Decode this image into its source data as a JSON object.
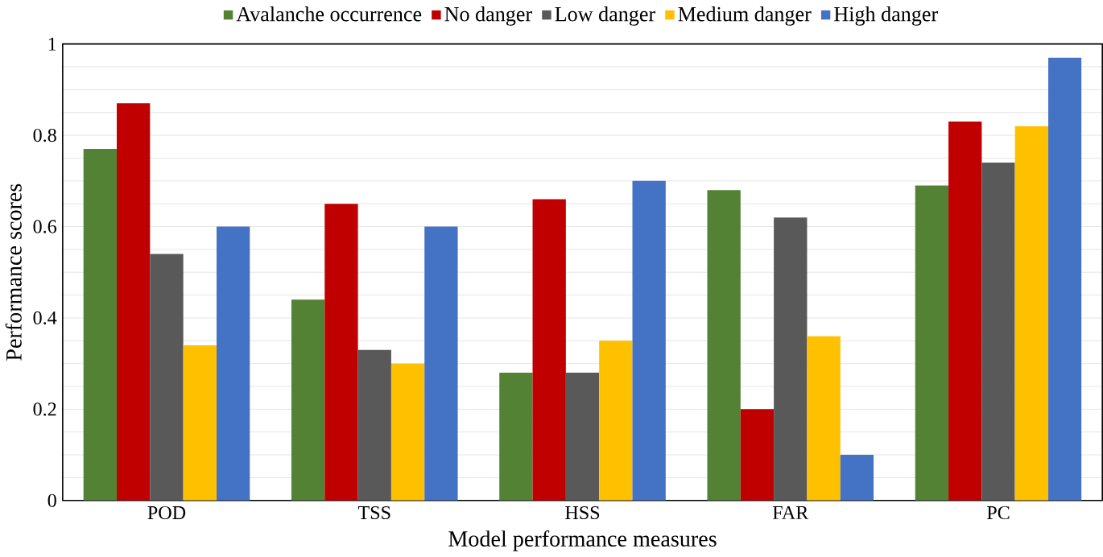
{
  "chart_data": {
    "type": "bar",
    "xlabel": "Model performance measures",
    "ylabel": "Performance scores",
    "categories": [
      "POD",
      "TSS",
      "HSS",
      "FAR",
      "PC"
    ],
    "series": [
      {
        "name": "Avalanche occurrence",
        "color": "#548235",
        "values": [
          0.77,
          0.44,
          0.28,
          0.68,
          0.69
        ]
      },
      {
        "name": "No danger",
        "color": "#c00000",
        "values": [
          0.87,
          0.65,
          0.66,
          0.2,
          0.83
        ]
      },
      {
        "name": "Low danger",
        "color": "#595959",
        "values": [
          0.54,
          0.33,
          0.28,
          0.62,
          0.74
        ]
      },
      {
        "name": "Medium danger",
        "color": "#ffc000",
        "values": [
          0.34,
          0.3,
          0.35,
          0.36,
          0.82
        ]
      },
      {
        "name": "High danger",
        "color": "#4472c4",
        "values": [
          0.6,
          0.6,
          0.7,
          0.1,
          0.97
        ]
      }
    ],
    "ylim": [
      0,
      1
    ],
    "yticks": [
      0,
      {
        "value": 0.05,
        "label": null
      },
      {
        "value": 0.1,
        "label": null
      },
      {
        "value": 0.15,
        "label": null
      },
      0.2,
      {
        "value": 0.25,
        "label": null
      },
      {
        "value": 0.3,
        "label": null
      },
      {
        "value": 0.35,
        "label": null
      },
      0.4,
      {
        "value": 0.45,
        "label": null
      },
      {
        "value": 0.5,
        "label": null
      },
      {
        "value": 0.55,
        "label": null
      },
      0.6,
      {
        "value": 0.65,
        "label": null
      },
      {
        "value": 0.7,
        "label": null
      },
      {
        "value": 0.75,
        "label": null
      },
      0.8,
      {
        "value": 0.85,
        "label": null
      },
      {
        "value": 0.9,
        "label": null
      },
      {
        "value": 0.95,
        "label": null
      },
      1
    ],
    "grid": "y",
    "legend": "top"
  }
}
